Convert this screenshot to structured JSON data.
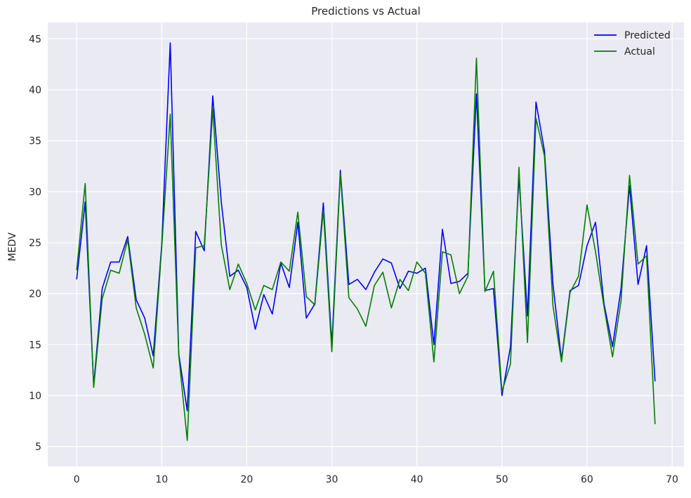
{
  "chart_data": {
    "type": "line",
    "title": "Predictions vs Actual",
    "xlabel": "",
    "ylabel": "MEDV",
    "xlim": [
      -3.4,
      71.4
    ],
    "ylim": [
      3.05,
      46.6
    ],
    "xticks": [
      0,
      10,
      20,
      30,
      40,
      50,
      60,
      70
    ],
    "yticks": [
      5,
      10,
      15,
      20,
      25,
      30,
      35,
      40,
      45
    ],
    "grid": true,
    "legend_position": "top-right",
    "x": [
      0,
      1,
      2,
      3,
      4,
      5,
      6,
      7,
      8,
      9,
      10,
      11,
      12,
      13,
      14,
      15,
      16,
      17,
      18,
      19,
      20,
      21,
      22,
      23,
      24,
      25,
      26,
      27,
      28,
      29,
      30,
      31,
      32,
      33,
      34,
      35,
      36,
      37,
      38,
      39,
      40,
      41,
      42,
      43,
      44,
      45,
      46,
      47,
      48,
      49,
      50,
      51,
      52,
      53,
      54,
      55,
      56,
      57,
      58,
      59,
      60,
      61,
      62,
      63,
      64,
      65,
      66,
      67,
      68
    ],
    "series": [
      {
        "name": "Predicted",
        "color": "#0000ff",
        "values": [
          21.4,
          29.0,
          11.0,
          20.5,
          23.1,
          23.1,
          25.6,
          19.4,
          17.6,
          13.9,
          24.8,
          44.6,
          14.1,
          8.5,
          26.1,
          24.2,
          39.4,
          29.0,
          21.7,
          22.3,
          20.6,
          16.5,
          19.9,
          18.0,
          23.0,
          20.6,
          27.0,
          17.6,
          19.0,
          28.9,
          15.0,
          32.1,
          20.9,
          21.4,
          20.4,
          22.1,
          23.4,
          23.0,
          20.5,
          22.2,
          22.0,
          22.5,
          15.0,
          26.3,
          21.0,
          21.2,
          22.0,
          39.6,
          20.3,
          20.5,
          10.0,
          14.8,
          31.5,
          17.8,
          38.8,
          34.0,
          20.9,
          13.5,
          20.3,
          20.8,
          24.7,
          27.0,
          19.0,
          14.8,
          20.5,
          30.6,
          20.9,
          24.7,
          11.4
        ]
      },
      {
        "name": "Actual",
        "color": "#008000",
        "values": [
          22.3,
          30.8,
          10.8,
          19.5,
          22.3,
          22.0,
          25.3,
          18.6,
          16.0,
          12.7,
          24.5,
          37.6,
          14.0,
          5.6,
          24.5,
          24.7,
          38.1,
          24.8,
          20.4,
          22.9,
          21.0,
          18.4,
          20.8,
          20.4,
          23.1,
          22.2,
          28.0,
          19.7,
          18.9,
          28.2,
          14.3,
          31.8,
          19.6,
          18.5,
          16.8,
          20.8,
          22.1,
          18.6,
          21.4,
          20.3,
          23.1,
          22.0,
          13.3,
          24.1,
          23.8,
          20.0,
          21.7,
          43.1,
          20.2,
          22.2,
          10.4,
          13.1,
          32.4,
          15.2,
          37.2,
          33.5,
          18.8,
          13.3,
          20.1,
          21.7,
          28.7,
          24.1,
          18.7,
          13.8,
          19.3,
          31.6,
          22.9,
          23.7,
          7.2
        ]
      }
    ]
  },
  "colors": {
    "axes_bg": "#eaeaf2",
    "grid": "#ffffff",
    "text": "#262626"
  }
}
